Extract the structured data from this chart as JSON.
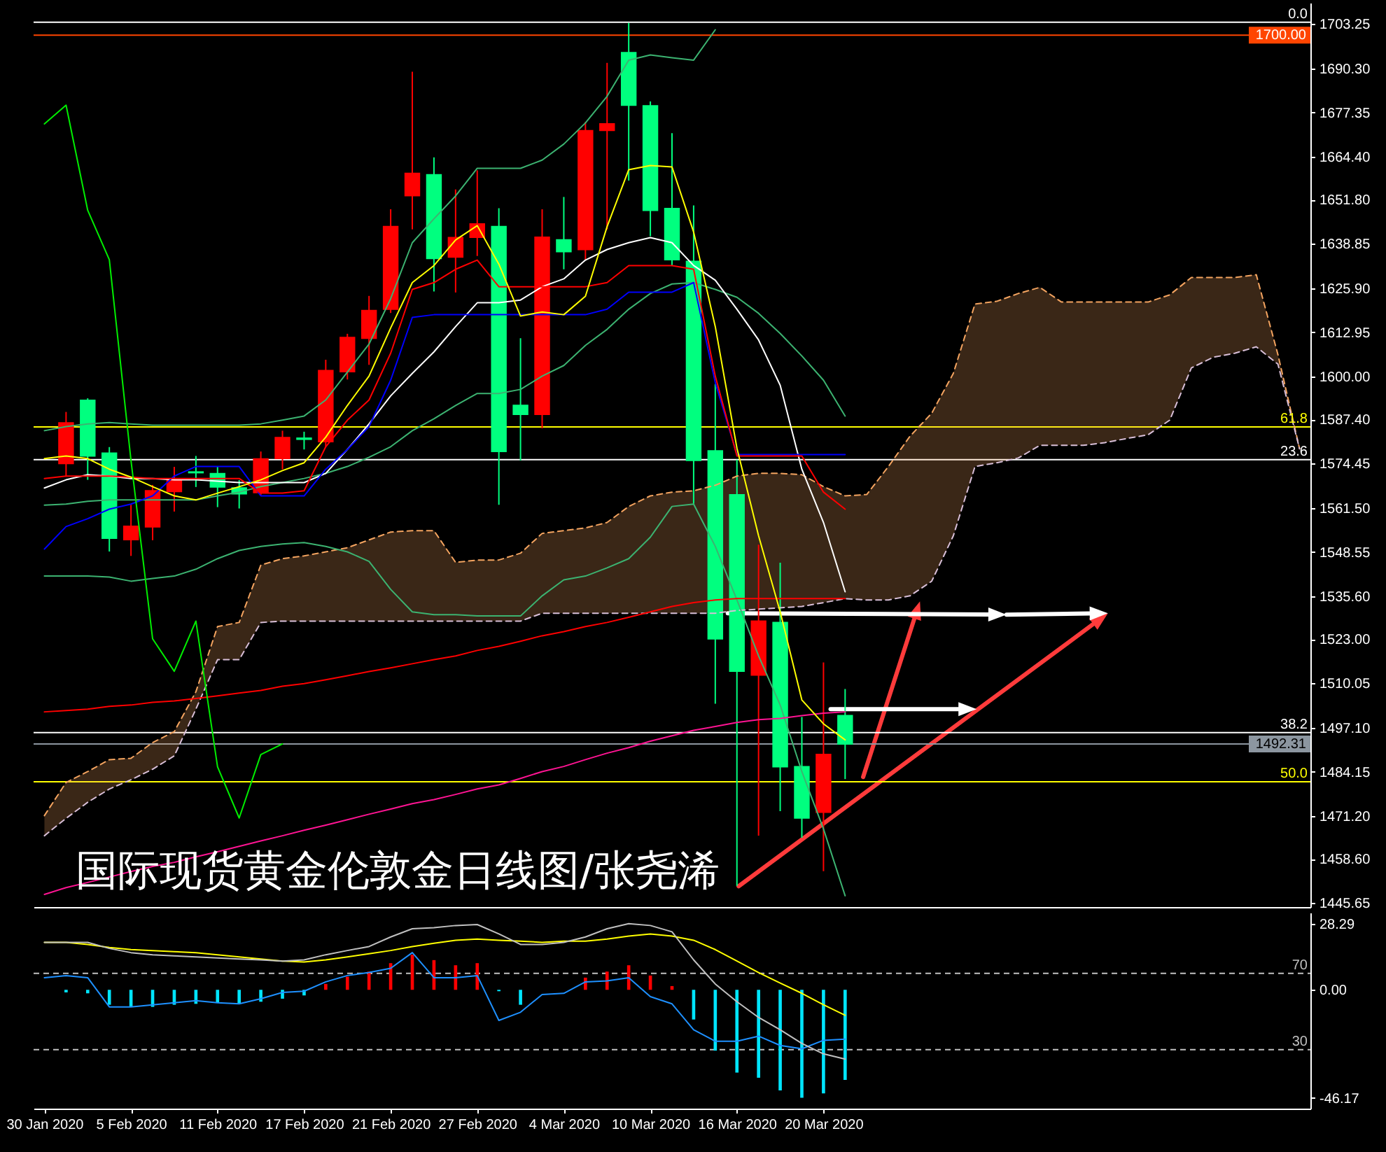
{
  "chart_data": [
    {
      "type": "candlestick",
      "title": "国际现货黄金伦敦金日线图/张尧浠",
      "categories": [
        null,
        null,
        null,
        null,
        null,
        null,
        null,
        null,
        null,
        null,
        null,
        null,
        null,
        null,
        null,
        null,
        null,
        null,
        null,
        null,
        null,
        null,
        null,
        null,
        null,
        null,
        null,
        null,
        null,
        null,
        null,
        null,
        null,
        null,
        null,
        null,
        null,
        null,
        null,
        null,
        null,
        null,
        null,
        null,
        null,
        null,
        null,
        null,
        null,
        null,
        null,
        null,
        null,
        null,
        null,
        null,
        null,
        null,
        null
      ],
      "ohlc": [
        null,
        [
          1574.5,
          1589.6,
          1570.6,
          1586.4
        ],
        [
          1593.0,
          1593.6,
          1569.7,
          1576.7
        ],
        [
          1577.5,
          1579.3,
          1548.7,
          1552.6
        ],
        [
          1552.2,
          1562.4,
          1547.4,
          1556.1
        ],
        [
          1555.9,
          1568.2,
          1552.0,
          1566.5
        ],
        [
          1566.3,
          1573.5,
          1560.4,
          1569.6
        ],
        [
          1572.0,
          1576.7,
          1567.6,
          1571.8
        ],
        [
          1571.5,
          1573.5,
          1561.7,
          1567.6
        ],
        [
          1567.3,
          1569.6,
          1561.3,
          1565.6
        ],
        [
          1566.0,
          1578.0,
          1565.2,
          1575.8
        ],
        [
          1576.0,
          1584.1,
          1572.8,
          1582.1
        ],
        [
          1581.9,
          1583.8,
          1578.6,
          1581.6
        ],
        [
          1580.9,
          1604.9,
          1579.4,
          1601.7
        ],
        [
          1601.4,
          1612.5,
          1599.1,
          1611.4
        ],
        [
          1611.2,
          1623.6,
          1603.4,
          1619.3
        ],
        [
          1619.7,
          1649.0,
          1618.6,
          1643.9
        ],
        [
          1653.0,
          1689.3,
          1643.1,
          1659.5
        ],
        [
          1659.1,
          1664.2,
          1624.9,
          1634.6
        ],
        [
          1635.0,
          1654.8,
          1624.6,
          1640.7
        ],
        [
          1640.8,
          1660.4,
          1635.3,
          1644.7
        ],
        [
          1643.9,
          1649.3,
          1562.4,
          1578.0
        ],
        [
          1591.5,
          1611.2,
          1575.4,
          1588.9
        ],
        [
          1588.9,
          1649.0,
          1584.8,
          1640.8
        ],
        [
          1640.0,
          1652.6,
          1631.4,
          1636.6
        ],
        [
          1637.2,
          1674.6,
          1634.0,
          1672.0
        ],
        [
          1672.1,
          1691.9,
          1643.1,
          1674.0
        ],
        [
          1694.9,
          1703.6,
          1657.4,
          1679.5
        ],
        [
          1679.3,
          1680.6,
          1641.1,
          1648.7
        ],
        [
          1649.2,
          1671.3,
          1632.6,
          1634.2
        ],
        [
          1633.7,
          1650.1,
          1562.7,
          1575.4
        ],
        [
          1578.2,
          1597.8,
          1504.1,
          1523.1
        ],
        [
          1565.3,
          1575.6,
          1450.7,
          1513.6
        ],
        [
          1512.5,
          1550.7,
          1465.4,
          1528.3
        ],
        [
          1527.9,
          1545.4,
          1472.6,
          1485.6
        ],
        [
          1485.6,
          1500.2,
          1464.8,
          1470.6
        ],
        [
          1472.3,
          1516.2,
          1455.0,
          1489.2
        ],
        [
          1500.6,
          1508.4,
          1482.0,
          1492.31
        ],
        null,
        null,
        null,
        null,
        null,
        null,
        null,
        null,
        null,
        null,
        null,
        null,
        null,
        null,
        null,
        null,
        null,
        null,
        null,
        null,
        null
      ],
      "colors": [
        null,
        "#ff0000",
        "#00ff7f",
        "#00ff7f",
        "#ff0000",
        "#ff0000",
        "#ff0000",
        "#00ff7f",
        "#00ff7f",
        "#00ff7f",
        "#ff0000",
        "#ff0000",
        "#00ff7f",
        "#ff0000",
        "#ff0000",
        "#ff0000",
        "#ff0000",
        "#ff0000",
        "#00ff7f",
        "#ff0000",
        "#ff0000",
        "#00ff7f",
        "#00ff7f",
        "#ff0000",
        "#00ff7f",
        "#ff0000",
        "#ff0000",
        "#00ff7f",
        "#00ff7f",
        "#00ff7f",
        "#00ff7f",
        "#00ff7f",
        "#00ff7f",
        "#ff0000",
        "#00ff7f",
        "#00ff7f",
        "#ff0000",
        "#00ff7f",
        null,
        null,
        null,
        null,
        null,
        null,
        null,
        null,
        null,
        null,
        null,
        null,
        null,
        null,
        null,
        null,
        null,
        null,
        null,
        null,
        null
      ],
      "series": [
        {
          "type": "line",
          "color": "#f4a460",
          "line_style": "dashed",
          "values": [
            1471.3,
            1481.0,
            1484.2,
            1487.7,
            1488.1,
            1492.7,
            1495.9,
            1507.6,
            1526.7,
            1527.9,
            1544.7,
            1546.6,
            1547.4,
            1548.6,
            1549.8,
            1552.1,
            1554.4,
            1554.8,
            1554.8,
            1545.5,
            1546.2,
            1546.2,
            1548.2,
            1554.0,
            1554.8,
            1555.6,
            1557.2,
            1561.9,
            1565.0,
            1566.1,
            1566.5,
            1568.1,
            1570.8,
            1571.6,
            1571.6,
            1571.2,
            1567.7,
            1565.0,
            1565.4,
            1573.6,
            1582.5,
            1589.2,
            1600.9,
            1621.2,
            1622.0,
            1624.3,
            1626.1,
            1621.8,
            1621.8,
            1621.8,
            1621.8,
            1621.8,
            1623.9,
            1629.0,
            1629.0,
            1629.0,
            1629.8,
            1606.4,
            1578.8
          ],
          "lower": [
            1465.4,
            1470.5,
            1475.2,
            1479.1,
            1481.8,
            1484.9,
            1488.8,
            1502.5,
            1517.0,
            1517.0,
            1527.9,
            1528.3,
            1528.3,
            1528.3,
            1528.3,
            1528.3,
            1528.3,
            1528.3,
            1528.3,
            1528.3,
            1528.3,
            1528.3,
            1528.3,
            1530.6,
            1530.6,
            1530.6,
            1530.6,
            1530.6,
            1530.6,
            1530.6,
            1530.6,
            1530.6,
            1531.4,
            1531.8,
            1532.2,
            1532.6,
            1533.7,
            1534.9,
            1534.5,
            1534.5,
            1535.7,
            1540.0,
            1553.3,
            1573.6,
            1574.7,
            1576.1,
            1579.8,
            1579.8,
            1579.8,
            1580.6,
            1581.8,
            1582.9,
            1587.2,
            1602.5,
            1605.6,
            1606.8,
            1608.7,
            1603.6,
            1578.8
          ],
          "upper": [
            1471.3,
            1481.0,
            1484.2,
            1487.7,
            1488.1,
            1492.7,
            1495.9,
            1507.6,
            1526.7,
            1527.9,
            1544.7,
            1546.6,
            1547.4,
            1548.6,
            1549.8,
            1552.1,
            1554.4,
            1554.8,
            1554.8,
            1545.5,
            1546.2,
            1546.2,
            1548.2,
            1554.0,
            1554.8,
            1555.6,
            1557.2,
            1561.9,
            1565.0,
            1566.1,
            1566.5,
            1568.1,
            1570.8,
            1571.6,
            1571.6,
            1571.2,
            1567.7,
            1565.0,
            1565.4,
            1573.6,
            1582.5,
            1589.2,
            1600.9,
            1621.2,
            1622.0,
            1624.3,
            1626.1,
            1621.8,
            1621.8,
            1621.8,
            1621.8,
            1621.8,
            1623.9,
            1629.0,
            1629.0,
            1629.0,
            1629.8,
            1606.4,
            1578.8
          ]
        },
        {
          "type": "line",
          "color": "#d8bfd8",
          "line_style": "dashed",
          "values": [
            1465.4,
            1470.5,
            1475.2,
            1479.1,
            1481.8,
            1484.9,
            1488.8,
            1502.5,
            1517.0,
            1517.0,
            1527.9,
            1528.3,
            1528.3,
            1528.3,
            1528.3,
            1528.3,
            1528.3,
            1528.3,
            1528.3,
            1528.3,
            1528.3,
            1528.3,
            1528.3,
            1530.6,
            1530.6,
            1530.6,
            1530.6,
            1530.6,
            1530.6,
            1530.6,
            1530.6,
            1530.6,
            1531.4,
            1531.8,
            1532.2,
            1532.6,
            1533.7,
            1534.9,
            1534.5,
            1534.5,
            1535.7,
            1540.0,
            1553.3,
            1573.6,
            1574.7,
            1576.1,
            1579.8,
            1579.8,
            1579.8,
            1580.6,
            1581.8,
            1582.9,
            1587.2,
            1602.5,
            1605.6,
            1606.8,
            1608.7,
            1603.6,
            1578.8
          ]
        },
        {
          "type": "line",
          "color": "#3cb371",
          "values": [
            1584.1,
            1585.3,
            1586.1,
            1586.5,
            1586.1,
            1585.7,
            1585.7,
            1585.7,
            1585.7,
            1585.7,
            1586.1,
            1587.2,
            1588.4,
            1593.1,
            1601.3,
            1609.5,
            1622.8,
            1639.2,
            1646.2,
            1652.9,
            1661.0,
            1661.0,
            1661.0,
            1663.4,
            1668.1,
            1674.3,
            1682.1,
            1692.7,
            1694.2,
            1693.4,
            1692.7,
            1701.6,
            null,
            null,
            null,
            null,
            null,
            null,
            null,
            null,
            null,
            null,
            null,
            null,
            null,
            null,
            null,
            null,
            null,
            null,
            null,
            null,
            null,
            null,
            null,
            null,
            null,
            null,
            null
          ]
        },
        {
          "type": "line",
          "color": "#3cb371",
          "values": [
            1562.3,
            1562.6,
            1563.4,
            1563.8,
            1563.8,
            1563.8,
            1563.8,
            1563.8,
            1565.0,
            1566.1,
            1567.7,
            1568.9,
            1570.1,
            1571.6,
            1573.6,
            1576.3,
            1579.4,
            1584.1,
            1587.6,
            1591.5,
            1595.0,
            1595.0,
            1596.2,
            1600.1,
            1603.2,
            1609.1,
            1613.8,
            1619.7,
            1624.3,
            1627.1,
            1627.5,
            1625.5,
            1623.2,
            1618.5,
            1612.6,
            1606.0,
            1598.9,
            1588.4,
            null,
            null,
            null,
            null,
            null,
            null,
            null,
            null,
            null,
            null,
            null,
            null,
            null,
            null,
            null,
            null,
            null,
            null,
            null,
            null,
            null
          ]
        },
        {
          "type": "line",
          "color": "#3cb371",
          "values": [
            1541.5,
            1541.5,
            1541.5,
            1541.2,
            1540.0,
            1540.8,
            1541.5,
            1543.5,
            1546.6,
            1549.0,
            1550.2,
            1550.9,
            1551.3,
            1550.2,
            1548.6,
            1545.8,
            1537.6,
            1531.0,
            1530.2,
            1530.2,
            1529.8,
            1529.8,
            1529.8,
            1535.7,
            1540.4,
            1541.5,
            1543.9,
            1546.6,
            1552.9,
            1561.9,
            1562.6,
            1550.2,
            1534.5,
            1518.1,
            1503.7,
            1484.2,
            1467.4,
            1447.8,
            null,
            null,
            null,
            null,
            null,
            null,
            null,
            null,
            null,
            null,
            null,
            null,
            null,
            null,
            null,
            null,
            null,
            null,
            null,
            null,
            null
          ]
        },
        {
          "type": "line",
          "color": "#ff0000",
          "values": [
            1501.7,
            1502.1,
            1502.5,
            1503.3,
            1503.7,
            1504.5,
            1504.9,
            1505.6,
            1506.4,
            1507.2,
            1508.0,
            1509.2,
            1510.0,
            1511.1,
            1512.3,
            1513.5,
            1514.6,
            1515.8,
            1517.0,
            1518.1,
            1519.7,
            1520.9,
            1522.4,
            1524.0,
            1525.2,
            1526.7,
            1527.9,
            1529.4,
            1531.0,
            1532.6,
            1533.7,
            1534.5,
            1534.9,
            1534.9,
            1534.9,
            1534.9,
            1534.9,
            1534.9,
            null,
            null,
            null,
            null,
            null,
            null,
            null,
            null,
            null,
            null,
            null,
            null,
            null,
            null,
            null,
            null,
            null,
            null,
            null,
            null,
            null
          ]
        },
        {
          "type": "line",
          "color": "#ff1493",
          "values": [
            1448.2,
            1450.2,
            1451.7,
            1453.3,
            1454.9,
            1456.4,
            1457.6,
            1459.2,
            1460.7,
            1462.3,
            1463.9,
            1465.4,
            1467.0,
            1468.5,
            1470.1,
            1471.7,
            1473.2,
            1474.8,
            1476.0,
            1477.5,
            1479.1,
            1480.3,
            1482.2,
            1484.2,
            1485.7,
            1487.7,
            1489.6,
            1491.2,
            1493.1,
            1494.7,
            1496.3,
            1497.4,
            1498.6,
            1499.4,
            1499.8,
            1500.6,
            1501.3,
            1501.7,
            null,
            null,
            null,
            null,
            null,
            null,
            null,
            null,
            null,
            null,
            null,
            null,
            null,
            null,
            null,
            null,
            null,
            null,
            null,
            null,
            null
          ]
        },
        {
          "type": "line",
          "color": "#ffffff",
          "values": [
            1567.3,
            1569.7,
            1571.2,
            1570.8,
            1570.1,
            1570.1,
            1569.7,
            1569.7,
            1569.3,
            1568.9,
            1568.9,
            1568.9,
            1568.9,
            1571.6,
            1578.6,
            1586.1,
            1594.3,
            1600.9,
            1607.2,
            1614.6,
            1621.6,
            1621.6,
            1622.4,
            1626.3,
            1628.6,
            1634.1,
            1637.2,
            1639.2,
            1640.7,
            1639.2,
            1632.5,
            1628.2,
            1619.7,
            1610.7,
            1597.4,
            1572.8,
            1557.2,
            1536.9,
            null,
            null,
            null,
            null,
            null,
            null,
            null,
            null,
            null,
            null,
            null,
            null,
            null,
            null,
            null,
            null,
            null,
            null,
            null,
            null,
            null
          ]
        },
        {
          "type": "line",
          "color": "#0000ff",
          "values": [
            1549.4,
            1556.0,
            1558.3,
            1561.1,
            1562.6,
            1565.0,
            1570.8,
            1573.6,
            1573.6,
            1573.6,
            1565.0,
            1565.0,
            1565.0,
            1572.8,
            1578.6,
            1585.3,
            1598.9,
            1617.3,
            1618.1,
            1618.1,
            1618.1,
            1618.1,
            1618.1,
            1618.1,
            1618.1,
            1618.1,
            1619.7,
            1624.7,
            1624.7,
            1624.7,
            1627.5,
            1598.2,
            1577.1,
            1577.1,
            1577.1,
            1577.1,
            1577.1,
            1577.1,
            null,
            null,
            null,
            null,
            null,
            null,
            null,
            null,
            null,
            null,
            null,
            null,
            null,
            null,
            null,
            null,
            null,
            null,
            null,
            null,
            null
          ]
        },
        {
          "type": "line",
          "color": "#ff0000",
          "values": [
            1570.1,
            1570.8,
            1570.8,
            1570.8,
            1570.5,
            1570.1,
            1570.1,
            1570.1,
            1570.1,
            1570.1,
            1565.8,
            1565.8,
            1566.5,
            1579.4,
            1587.2,
            1593.1,
            1606.8,
            1625.5,
            1627.5,
            1631.4,
            1634.1,
            1626.3,
            1626.3,
            1626.3,
            1626.3,
            1626.3,
            1627.5,
            1632.5,
            1632.5,
            1632.5,
            1631.4,
            1600.1,
            1576.7,
            1576.7,
            1576.7,
            1576.7,
            1566.1,
            1561.1,
            null,
            null,
            null,
            null,
            null,
            null,
            null,
            null,
            null,
            null,
            null,
            null,
            null,
            null,
            null,
            null,
            null,
            null,
            null,
            null,
            null
          ]
        },
        {
          "type": "line",
          "color": "#ffff00",
          "values": [
            1575.9,
            1576.7,
            1575.9,
            1572.8,
            1570.5,
            1567.7,
            1565.0,
            1563.8,
            1565.8,
            1567.7,
            1569.7,
            1572.4,
            1574.7,
            1582.2,
            1591.5,
            1600.1,
            1614.2,
            1627.5,
            1632.5,
            1640.0,
            1644.2,
            1632.9,
            1617.7,
            1618.9,
            1618.1,
            1623.5,
            1643.9,
            1660.6,
            1661.8,
            1661.4,
            1642.3,
            1614.6,
            1579.0,
            1553.3,
            1531.0,
            1505.2,
            1498.2,
            1493.5,
            null,
            null,
            null,
            null,
            null,
            null,
            null,
            null,
            null,
            null,
            null,
            null,
            null,
            null,
            null,
            null,
            null,
            null,
            null,
            null,
            null
          ]
        },
        {
          "type": "line",
          "color": "#00ee00",
          "values": [
            1674.0,
            1679.5,
            1648.7,
            1634.2,
            1575.4,
            1523.1,
            1513.6,
            1528.3,
            1485.6,
            1470.6,
            1489.2,
            1492.3,
            null,
            null,
            null,
            null,
            null,
            null,
            null,
            null,
            null,
            null,
            null,
            null,
            null,
            null,
            null,
            null,
            null,
            null,
            null,
            null,
            null,
            null,
            null,
            null,
            null,
            null,
            null,
            null,
            null,
            null,
            null,
            null,
            null,
            null,
            null,
            null,
            null,
            null,
            null,
            null,
            null,
            null,
            null,
            null,
            null,
            null,
            null
          ]
        }
      ],
      "ylim": [
        1444.5,
        1709.5
      ],
      "yticks": [
        1703.25,
        {
          "value": 1690.3,
          "label": "1690.30"
        },
        1677.35,
        {
          "value": 1664.4,
          "label": "1664.40"
        },
        {
          "value": 1651.8,
          "label": "1651.80"
        },
        1638.85,
        {
          "value": 1625.9,
          "label": "1625.90"
        },
        1612.95,
        {
          "value": 1600,
          "label": "1600.00"
        },
        {
          "value": 1587.4,
          "label": "1587.40"
        },
        1574.45,
        {
          "value": 1561.5,
          "label": "1561.50"
        },
        1548.55,
        {
          "value": 1535.6,
          "label": "1535.60"
        },
        {
          "value": 1523,
          "label": "1523.00"
        },
        1510.05,
        {
          "value": 1497.1,
          "label": "1497.10"
        },
        1484.15,
        {
          "value": 1471.2,
          "label": "1471.20"
        },
        {
          "value": 1458.6,
          "label": "1458.60"
        },
        1445.65
      ],
      "ref_lines": [
        {
          "axis": "y",
          "value": 1703.8,
          "color": "#ffffff"
        },
        {
          "axis": "y",
          "value": 1700,
          "label": "1700.00",
          "color": "#ff4500"
        },
        {
          "axis": "y",
          "value": 1585.2,
          "color": "#ffff00"
        },
        {
          "axis": "y",
          "value": 1575.6,
          "color": "#ffffff"
        },
        {
          "axis": "y",
          "value": 1495.6,
          "color": "#ffffff"
        },
        {
          "axis": "y",
          "value": 1492.31,
          "label": "1492.31",
          "color": "#8c96a0"
        },
        {
          "axis": "y",
          "value": 1481.2,
          "color": "#ffff00"
        }
      ],
      "annotations": [
        {
          "text": "0.0",
          "y": 1703.8
        },
        {
          "text": "61.8",
          "y": 1585.2
        },
        {
          "text": "23.6",
          "y": 1575.6
        },
        {
          "text": "38.2",
          "y": 1495.6
        },
        {
          "text": "50.0",
          "y": 1481.2
        }
      ],
      "tick_labels": "y"
    },
    {
      "type": "bar",
      "categories": [
        "30 Jan 2020",
        null,
        null,
        null,
        "5 Feb 2020",
        null,
        null,
        null,
        "11 Feb 2020",
        null,
        null,
        null,
        "17 Feb 2020",
        null,
        null,
        null,
        "21 Feb 2020",
        null,
        null,
        null,
        "27 Feb 2020",
        null,
        null,
        null,
        "4 Mar 2020",
        null,
        null,
        null,
        "10 Mar 2020",
        null,
        null,
        null,
        "16 Mar 2020",
        null,
        null,
        null,
        "20 Mar 2020",
        null,
        null,
        null,
        null,
        null,
        null,
        null,
        null,
        null,
        null,
        null,
        null,
        null,
        null,
        null,
        null,
        null,
        null,
        null,
        null,
        null,
        null
      ],
      "series": [
        {
          "type": "bar",
          "values": [
            null,
            -1.1,
            -1.5,
            -6.4,
            -7.3,
            -7.3,
            -6.4,
            -6.0,
            -5.5,
            -6.0,
            -5.1,
            -3.8,
            -2.4,
            2.5,
            5.6,
            7.8,
            11.4,
            15.0,
            12.7,
            10.5,
            11.4,
            -0.6,
            -6.4,
            null,
            null,
            5.2,
            7.8,
            10.5,
            6.1,
            1.6,
            -12.7,
            -26.0,
            -35.4,
            -37.6,
            -43.0,
            -46.17,
            -44.3,
            -38.5,
            null,
            null,
            null,
            null,
            null,
            null,
            null,
            null,
            null,
            null,
            null,
            null,
            null,
            null,
            null,
            null,
            null,
            null,
            null,
            null,
            null
          ],
          "colors": [
            null,
            "#00e5ff",
            "#00e5ff",
            "#00e5ff",
            "#00e5ff",
            "#00e5ff",
            "#00e5ff",
            "#00e5ff",
            "#00e5ff",
            "#00e5ff",
            "#00e5ff",
            "#00e5ff",
            "#00e5ff",
            "#ff0000",
            "#ff0000",
            "#ff0000",
            "#ff0000",
            "#ff0000",
            "#ff0000",
            "#ff0000",
            "#ff0000",
            "#00e5ff",
            "#00e5ff",
            null,
            null,
            "#ff0000",
            "#ff0000",
            "#ff0000",
            "#ff0000",
            "#ff0000",
            "#00e5ff",
            "#00e5ff",
            "#00e5ff",
            "#00e5ff",
            "#00e5ff",
            "#00e5ff",
            "#00e5ff",
            "#00e5ff",
            null,
            null,
            null,
            null,
            null,
            null,
            null,
            null,
            null,
            null,
            null,
            null,
            null,
            null,
            null,
            null,
            null,
            null,
            null,
            null,
            null
          ]
        },
        {
          "type": "line",
          "color": "#1e90ff",
          "values": [
            5.2,
            6.1,
            5.2,
            -7.3,
            -7.3,
            -6.4,
            -5.5,
            -4.6,
            -5.5,
            -6.0,
            -3.8,
            -1.1,
            -0.6,
            3.4,
            6.1,
            7.4,
            9.2,
            15.9,
            5.2,
            5.2,
            6.1,
            -13.1,
            -9.6,
            -2.0,
            -1.5,
            3.4,
            3.8,
            5.2,
            -2.9,
            -6.0,
            -17.1,
            -22.0,
            -22.0,
            -19.8,
            -23.8,
            -25.2,
            -21.6,
            -21.1,
            null,
            null,
            null,
            null,
            null,
            null,
            null,
            null,
            null,
            null,
            null,
            null,
            null,
            null,
            null,
            null,
            null,
            null,
            null,
            null,
            null
          ]
        },
        {
          "type": "line",
          "color": "#ffff00",
          "values": [
            20.3,
            20.3,
            19.4,
            18.1,
            17.2,
            16.8,
            16.3,
            15.9,
            15.0,
            14.1,
            13.2,
            12.3,
            11.9,
            12.8,
            14.1,
            15.4,
            16.8,
            18.5,
            19.9,
            21.2,
            21.7,
            21.2,
            20.8,
            20.3,
            20.8,
            20.8,
            21.7,
            23.0,
            23.9,
            23.0,
            21.2,
            17.2,
            12.3,
            7.4,
            2.9,
            -1.5,
            -6.4,
            -10.9,
            null,
            null,
            null,
            null,
            null,
            null,
            null,
            null,
            null,
            null,
            null,
            null,
            null,
            null,
            null,
            null,
            null,
            null,
            null,
            null,
            null
          ]
        },
        {
          "type": "line",
          "color": "#c0c0c0",
          "values": [
            20.3,
            20.3,
            20.3,
            17.7,
            15.9,
            15.0,
            14.5,
            14.1,
            13.6,
            13.2,
            12.8,
            12.3,
            12.8,
            15.0,
            16.8,
            18.5,
            22.6,
            26.1,
            26.6,
            27.5,
            27.9,
            23.9,
            19.4,
            19.4,
            20.3,
            22.6,
            26.1,
            28.29,
            27.5,
            24.8,
            12.8,
            2.5,
            -5.1,
            -11.8,
            -17.1,
            -22.9,
            -27.4,
            -29.6,
            null,
            null,
            null,
            null,
            null,
            null,
            null,
            null,
            null,
            null,
            null,
            null,
            null,
            null,
            null,
            null,
            null,
            null,
            null,
            null,
            null
          ]
        }
      ],
      "ylim": [
        -50.8,
        33.0
      ],
      "yticks": [
        28.29,
        {
          "value": 0,
          "label": "0.00"
        },
        -46.17
      ],
      "ref_lines": [
        {
          "axis": "y",
          "value": 7,
          "color": "#c0c0c0",
          "line_style": "dashed"
        },
        {
          "axis": "y",
          "value": -25.6,
          "color": "#c0c0c0",
          "line_style": "dashed"
        }
      ],
      "annotations": [
        {
          "text": "70",
          "y": 7
        },
        {
          "text": "30",
          "y": -25.6
        }
      ]
    }
  ]
}
